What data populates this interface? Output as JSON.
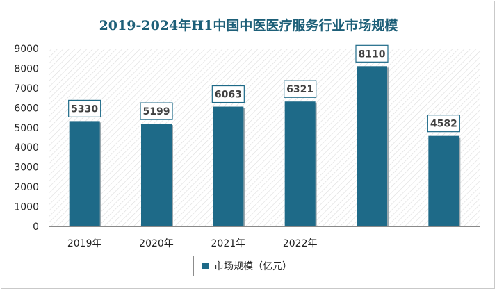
{
  "chart_data": {
    "type": "bar",
    "title": "2019-2024年H1中国中医医疗服务行业市场规模",
    "categories": [
      "2019年",
      "2020年",
      "2021年",
      "2022年",
      "",
      ""
    ],
    "series": [
      {
        "name": "市场规模（亿元）",
        "values": [
          5330,
          5199,
          6063,
          6321,
          8110,
          4582
        ],
        "color": "#1e6a88"
      }
    ],
    "ylim": [
      0,
      9000
    ],
    "yticks": [
      0,
      1000,
      2000,
      3000,
      4000,
      5000,
      6000,
      7000,
      8000,
      9000
    ],
    "grid": false,
    "legend_position": "bottom",
    "background_pattern": "diagonal-hatch"
  }
}
